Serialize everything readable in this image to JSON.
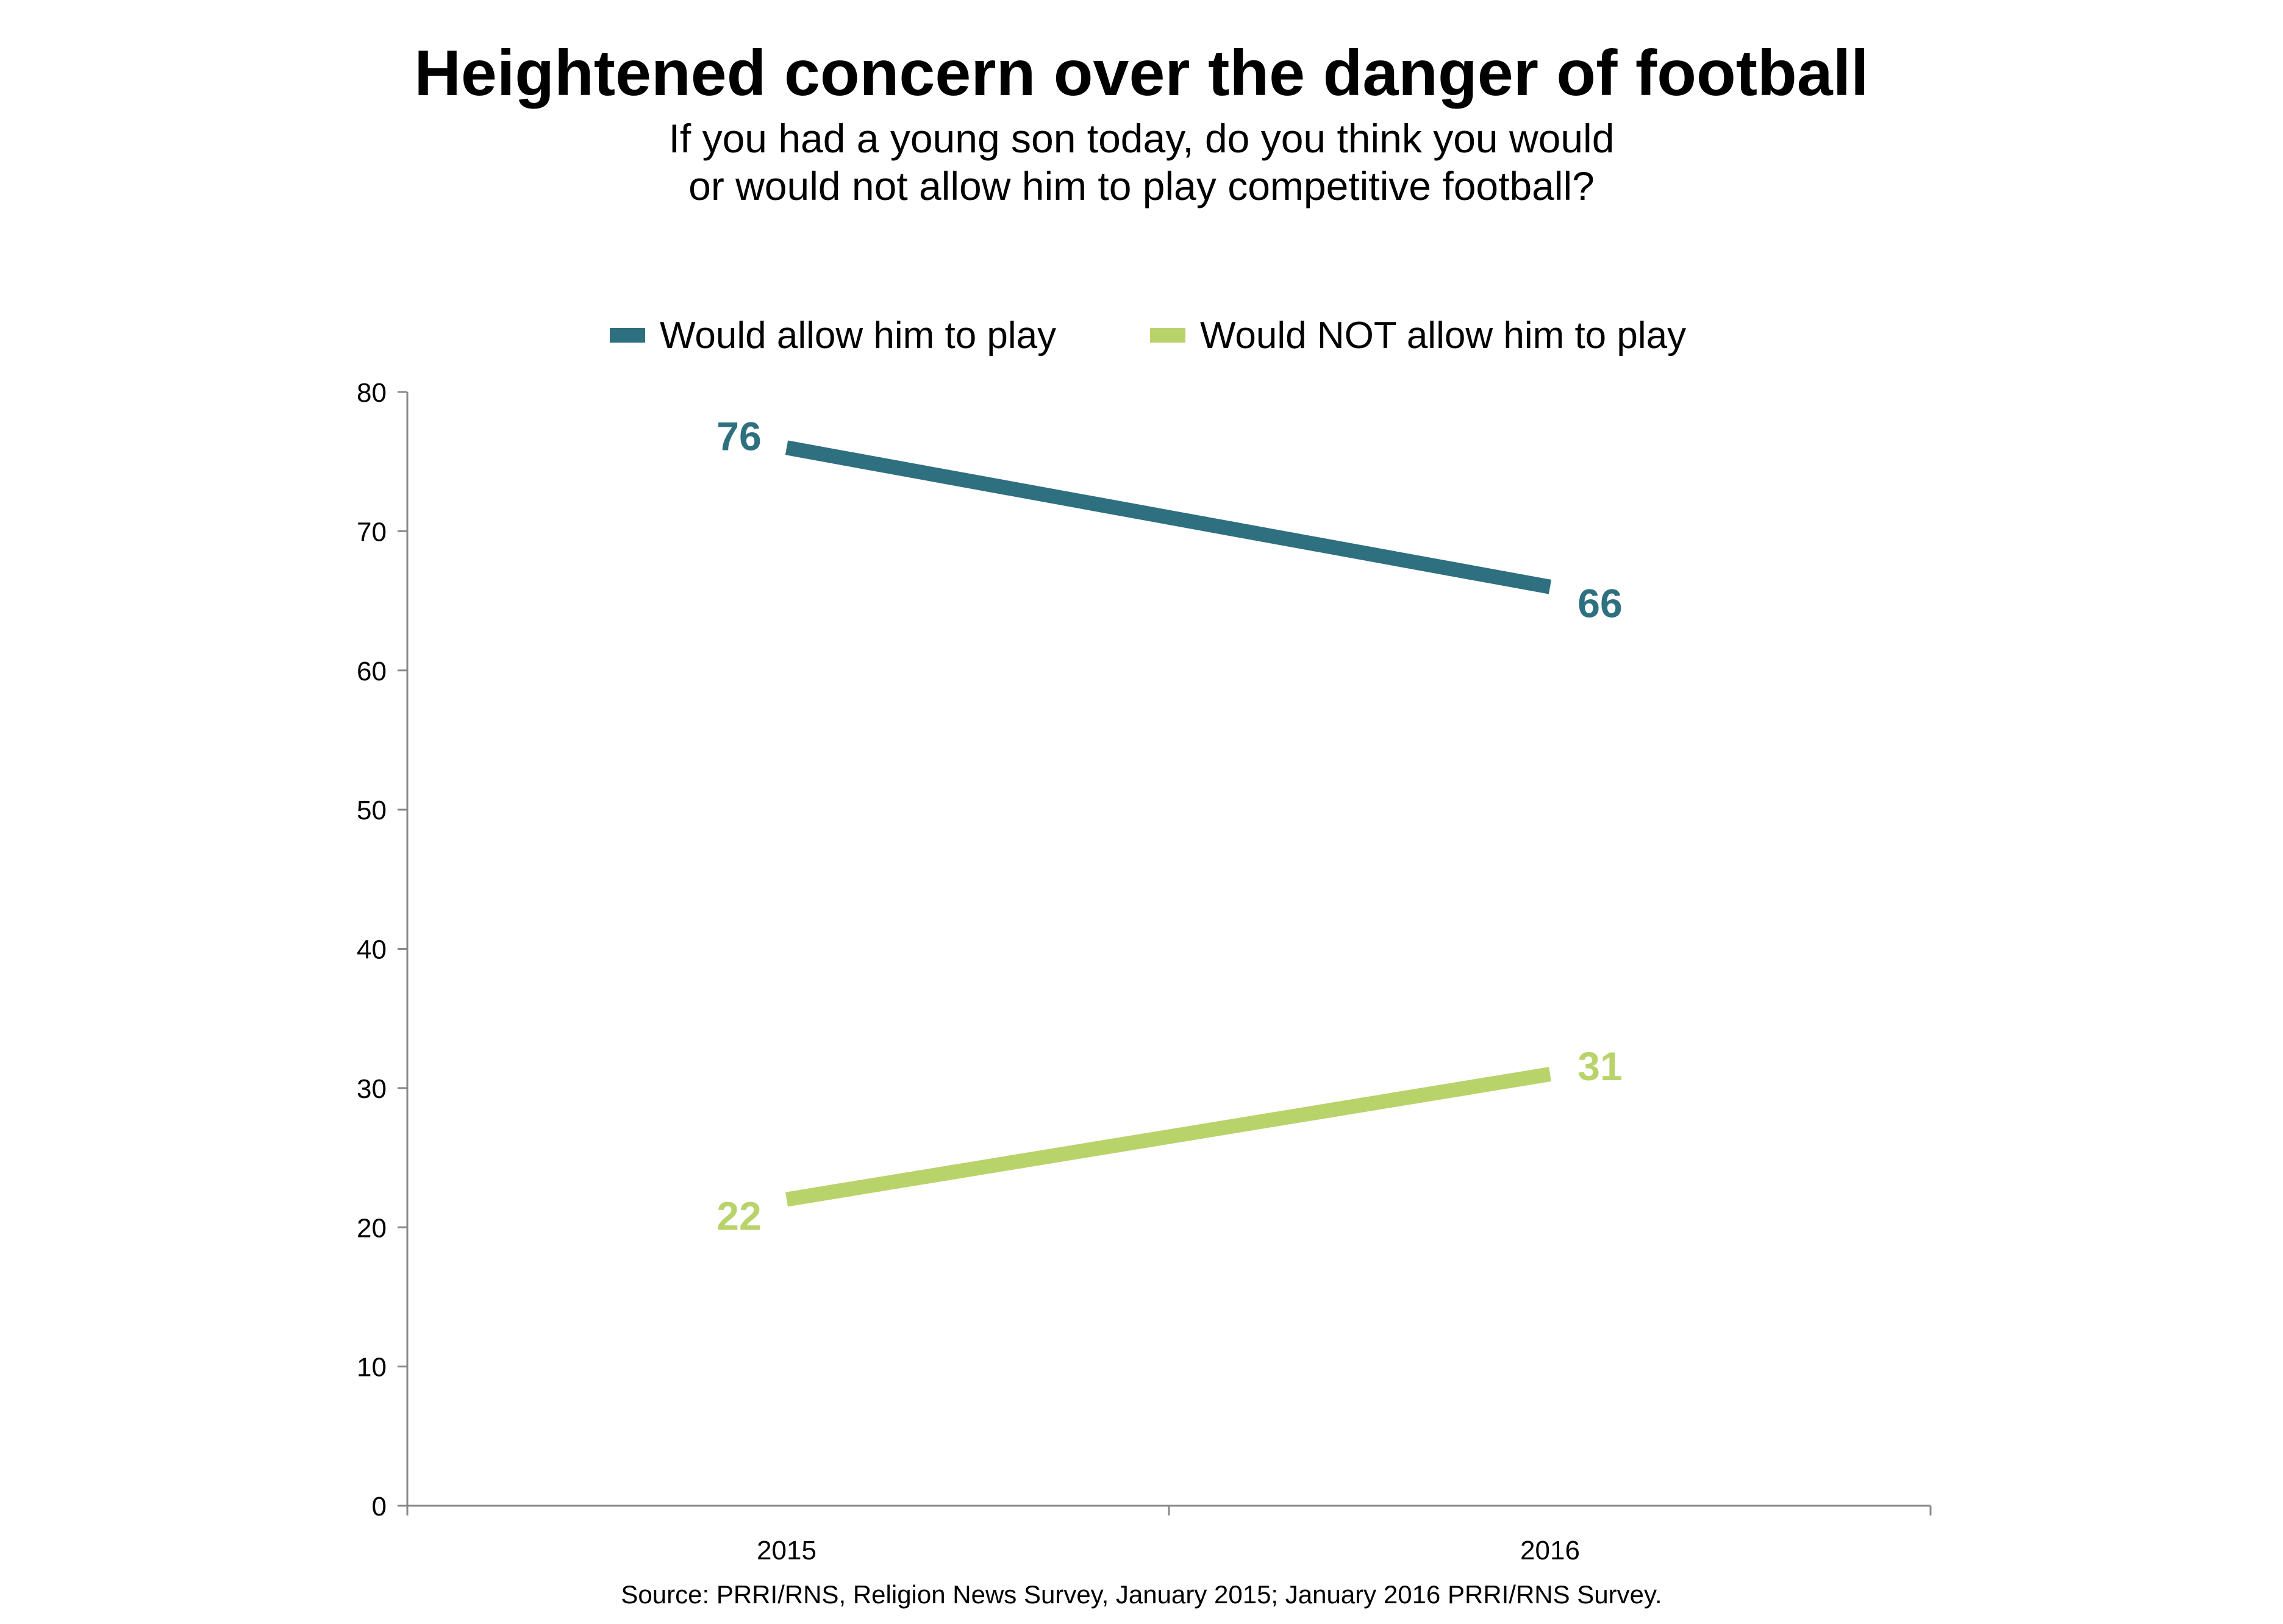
{
  "chart_data": {
    "type": "line",
    "title": "Heightened concern over the danger of football",
    "subtitle_lines": [
      "If you had a young son today, do you think you would",
      "or would not allow him to play competitive football?"
    ],
    "categories": [
      "2015",
      "2016"
    ],
    "series": [
      {
        "name": "Would allow him to play",
        "values": [
          76,
          66
        ],
        "color": "#2e6f80"
      },
      {
        "name": "Would NOT allow him to play",
        "values": [
          22,
          31
        ],
        "color": "#b9d36b"
      }
    ],
    "yticks": [
      "0",
      "10",
      "20",
      "30",
      "40",
      "50",
      "60",
      "70",
      "80"
    ],
    "ylim": [
      0,
      80
    ],
    "grid": false,
    "legend_position": "top",
    "source": "Source: PRRI/RNS, Religion News Survey, January 2015; January 2016 PRRI/RNS Survey."
  }
}
